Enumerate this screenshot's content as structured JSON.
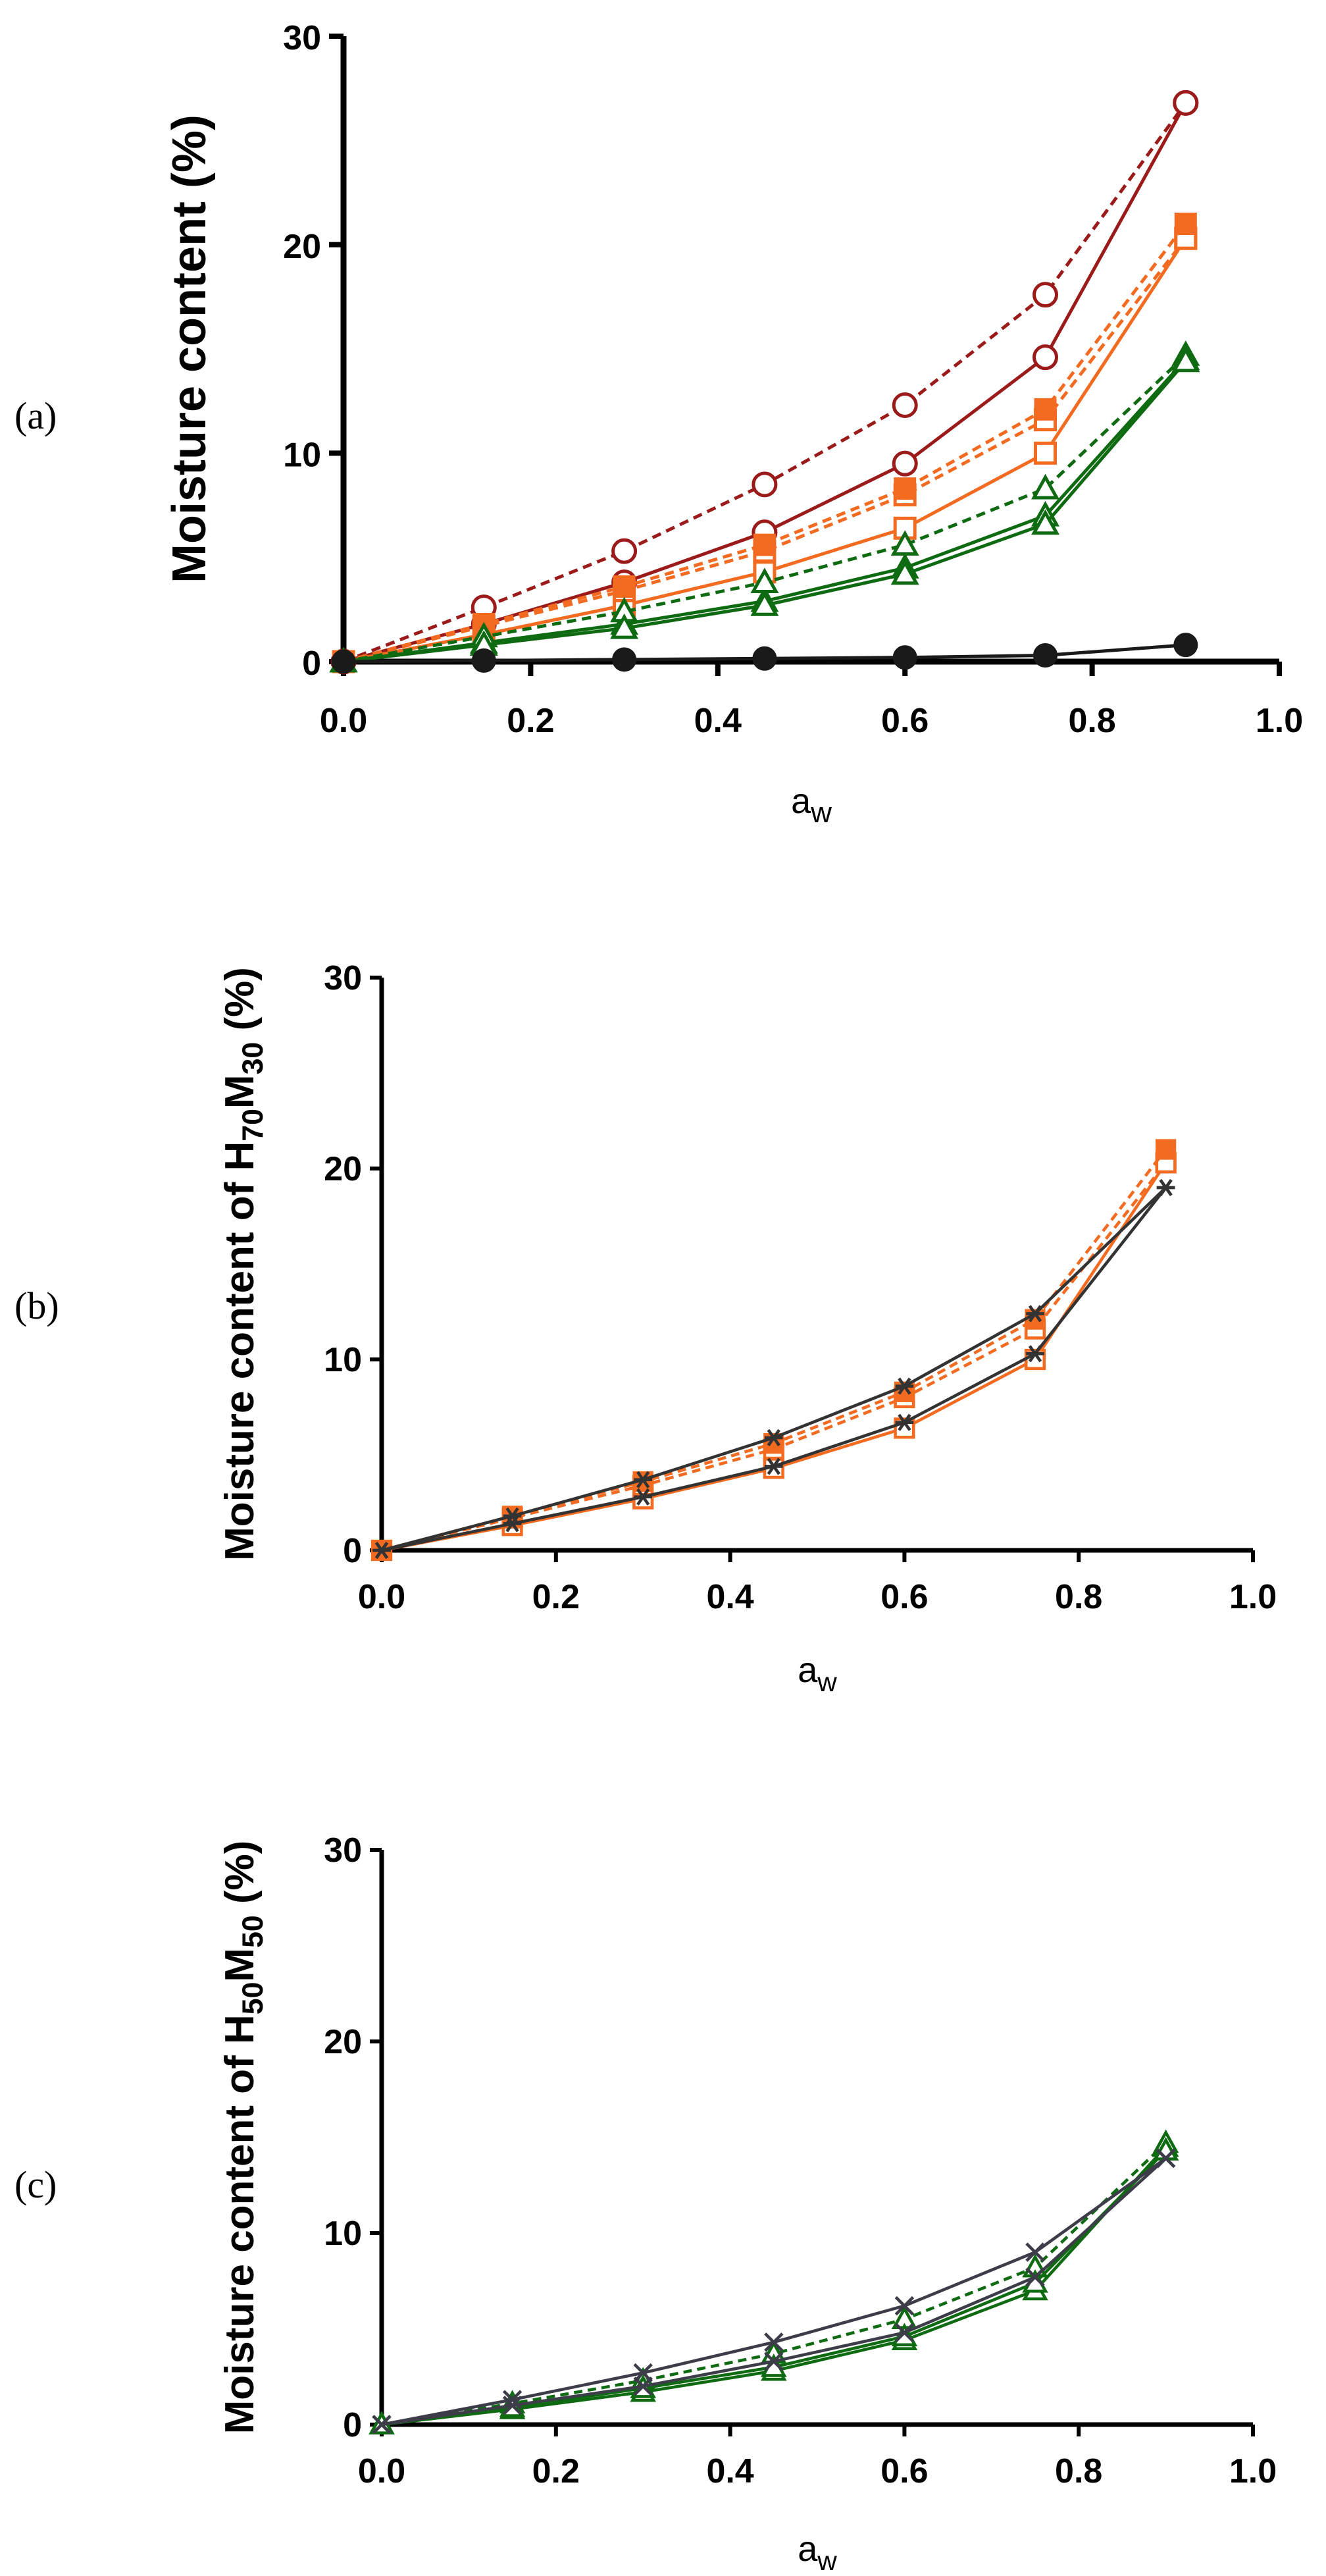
{
  "figure": {
    "panels": [
      {
        "label": "(a)"
      },
      {
        "label": "(b)"
      },
      {
        "label": "(c)"
      }
    ]
  },
  "chart_data": [
    {
      "type": "line",
      "panel": "(a)",
      "title": "",
      "xlabel": "aw",
      "ylabel": "Moisture content (%)",
      "xlim": [
        0,
        1.0
      ],
      "ylim": [
        0,
        30
      ],
      "xticks": [
        "0.0",
        "0.2",
        "0.4",
        "0.6",
        "0.8",
        "1.0"
      ],
      "yticks": [
        "0",
        "10",
        "20",
        "30"
      ],
      "x": [
        0,
        0.15,
        0.3,
        0.45,
        0.6,
        0.75,
        0.9
      ],
      "series": [
        {
          "name": "open-circle-solid",
          "color": "#9b1b1b",
          "dash": "solid",
          "marker": "circle-open",
          "values": [
            0,
            1.8,
            3.8,
            6.2,
            9.5,
            14.6,
            26.8
          ]
        },
        {
          "name": "open-circle-dashed",
          "color": "#9b1b1b",
          "dash": "dashed",
          "marker": "circle-open",
          "values": [
            0,
            2.6,
            5.3,
            8.5,
            12.3,
            17.6,
            26.8
          ]
        },
        {
          "name": "open-square-solid",
          "color": "#f26b21",
          "dash": "solid",
          "marker": "square-open",
          "values": [
            0,
            1.3,
            2.7,
            4.3,
            6.4,
            10.0,
            20.3
          ]
        },
        {
          "name": "open-square-dashed",
          "color": "#f26b21",
          "dash": "dashed",
          "marker": "square-open",
          "values": [
            0,
            1.7,
            3.4,
            5.3,
            8.0,
            11.6,
            20.3
          ]
        },
        {
          "name": "filled-square-dashed",
          "color": "#f26b21",
          "dash": "dashed",
          "marker": "square-filled",
          "values": [
            0,
            1.8,
            3.6,
            5.6,
            8.3,
            12.1,
            21.0
          ]
        },
        {
          "name": "triangle-solid",
          "color": "#0f6b12",
          "dash": "solid",
          "marker": "triangle-open",
          "values": [
            0,
            0.9,
            1.8,
            2.9,
            4.5,
            7.0,
            14.5
          ]
        },
        {
          "name": "triangle-dashed",
          "color": "#0f6b12",
          "dash": "dashed",
          "marker": "triangle-open",
          "values": [
            0,
            1.2,
            2.4,
            3.8,
            5.6,
            8.3,
            14.7
          ]
        },
        {
          "name": "triangle-solid-2",
          "color": "#0f6b12",
          "dash": "solid",
          "marker": "triangle-open",
          "values": [
            0,
            0.8,
            1.6,
            2.7,
            4.2,
            6.6,
            14.4
          ]
        },
        {
          "name": "filled-circle-solid",
          "color": "#1a1a1a",
          "dash": "solid",
          "marker": "circle-filled",
          "values": [
            0,
            0.05,
            0.1,
            0.15,
            0.2,
            0.3,
            0.8
          ]
        }
      ]
    },
    {
      "type": "line",
      "panel": "(b)",
      "title": "",
      "xlabel": "aw",
      "ylabel": "Moisture content of H70M30 (%)",
      "xlim": [
        0,
        1.0
      ],
      "ylim": [
        0,
        30
      ],
      "xticks": [
        "0.0",
        "0.2",
        "0.4",
        "0.6",
        "0.8",
        "1.0"
      ],
      "yticks": [
        "0",
        "10",
        "20",
        "30"
      ],
      "x": [
        0,
        0.15,
        0.3,
        0.45,
        0.6,
        0.75,
        0.9
      ],
      "series": [
        {
          "name": "open-square-solid",
          "color": "#f26b21",
          "dash": "solid",
          "marker": "square-open",
          "values": [
            0,
            1.3,
            2.7,
            4.3,
            6.4,
            10.0,
            20.3
          ]
        },
        {
          "name": "open-square-dashed",
          "color": "#f26b21",
          "dash": "dashed",
          "marker": "square-open",
          "values": [
            0,
            1.7,
            3.4,
            5.3,
            8.0,
            11.6,
            20.3
          ]
        },
        {
          "name": "filled-square-dashed",
          "color": "#f26b21",
          "dash": "dashed",
          "marker": "square-filled",
          "values": [
            0,
            1.8,
            3.6,
            5.6,
            8.3,
            12.1,
            21.0
          ]
        },
        {
          "name": "asterisk-solid-upper",
          "color": "#333333",
          "dash": "solid",
          "marker": "asterisk",
          "values": [
            0,
            1.8,
            3.7,
            5.9,
            8.6,
            12.4,
            19.0
          ]
        },
        {
          "name": "asterisk-solid-lower",
          "color": "#333333",
          "dash": "solid",
          "marker": "asterisk",
          "values": [
            0,
            1.4,
            2.8,
            4.4,
            6.7,
            10.3,
            19.0
          ]
        }
      ]
    },
    {
      "type": "line",
      "panel": "(c)",
      "title": "",
      "xlabel": "aw",
      "ylabel": "Moisture content of H50M50 (%)",
      "xlim": [
        0,
        1.0
      ],
      "ylim": [
        0,
        30
      ],
      "xticks": [
        "0.0",
        "0.2",
        "0.4",
        "0.6",
        "0.8",
        "1.0"
      ],
      "yticks": [
        "0",
        "10",
        "20",
        "30"
      ],
      "x": [
        0,
        0.15,
        0.3,
        0.45,
        0.6,
        0.75,
        0.9
      ],
      "series": [
        {
          "name": "triangle-solid",
          "color": "#0f6b12",
          "dash": "solid",
          "marker": "triangle-open",
          "values": [
            0,
            0.8,
            1.7,
            2.8,
            4.4,
            7.0,
            14.5
          ]
        },
        {
          "name": "triangle-dashed",
          "color": "#0f6b12",
          "dash": "dashed",
          "marker": "triangle-open",
          "values": [
            0,
            1.1,
            2.3,
            3.7,
            5.5,
            8.2,
            14.7
          ]
        },
        {
          "name": "triangle-solid-2",
          "color": "#0f6b12",
          "dash": "solid",
          "marker": "triangle-open",
          "values": [
            0,
            0.9,
            1.9,
            3.0,
            4.6,
            7.4,
            14.3
          ]
        },
        {
          "name": "cross-solid-upper",
          "color": "#3d3d4a",
          "dash": "solid",
          "marker": "cross",
          "values": [
            0,
            1.3,
            2.7,
            4.3,
            6.2,
            9.0,
            13.9
          ]
        },
        {
          "name": "cross-solid-lower",
          "color": "#3d3d4a",
          "dash": "solid",
          "marker": "cross",
          "values": [
            0,
            1.0,
            2.0,
            3.3,
            4.8,
            7.7,
            13.9
          ]
        }
      ]
    }
  ]
}
